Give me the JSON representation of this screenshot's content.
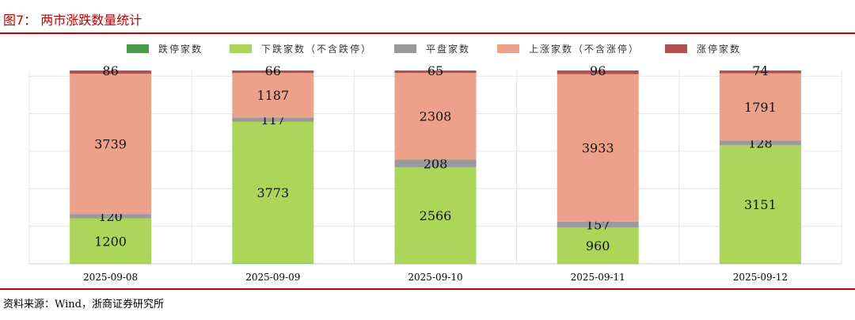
{
  "figure_title": "图7：  两市涨跌数量统计",
  "source": "资料来源：Wind，浙商证券研究所",
  "chart_data": {
    "type": "bar",
    "stacked": true,
    "title": "两市涨跌数量统计",
    "categories": [
      "2025-09-08",
      "2025-09-09",
      "2025-09-10",
      "2025-09-11",
      "2025-09-12"
    ],
    "series": [
      {
        "name": "跌停家数",
        "color": "#4a9a4a",
        "values": [
          7,
          9,
          5,
          6,
          8
        ]
      },
      {
        "name": "下跌家数（不含跌停）",
        "color": "#acd65a",
        "values": [
          1200,
          3773,
          2566,
          960,
          3151
        ]
      },
      {
        "name": "平盘家数",
        "color": "#9a9a9a",
        "values": [
          120,
          117,
          208,
          157,
          128
        ]
      },
      {
        "name": "上涨家数（不含涨停）",
        "color": "#eda08a",
        "values": [
          3739,
          1187,
          2308,
          3933,
          1791
        ]
      },
      {
        "name": "涨停家数",
        "color": "#b05050",
        "values": [
          86,
          66,
          65,
          96,
          74
        ]
      }
    ],
    "legend": "top",
    "grid": true,
    "ylim": [
      0,
      5152
    ],
    "xlabel": "",
    "ylabel": ""
  }
}
